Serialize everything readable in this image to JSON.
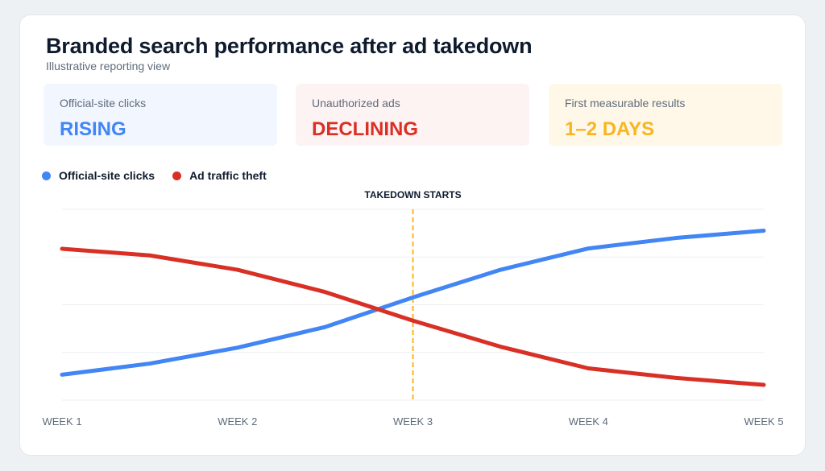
{
  "header": {
    "title": "Branded search performance after ad takedown",
    "subtitle": "Illustrative reporting view"
  },
  "kpis": [
    {
      "label": "Official-site clicks",
      "value": "RISING",
      "bg": "#f2f6fe",
      "color": "#4285f4"
    },
    {
      "label": "Unauthorized ads",
      "value": "DECLINING",
      "bg": "#fef3f3",
      "color": "#d93025"
    },
    {
      "label": "First measurable results",
      "value": "1–2 DAYS",
      "bg": "#fff8e9",
      "color": "#f9b51f"
    }
  ],
  "colors": {
    "blue": "#4285f4",
    "red": "#d93025",
    "marker": "#f9b51f",
    "grid": "#eceff3",
    "tick": "#5f6b7a"
  },
  "chart_data": {
    "type": "line",
    "x": [
      "WEEK 1",
      "",
      "WEEK 2",
      "",
      "WEEK 3",
      "",
      "WEEK 4",
      "",
      "WEEK 5"
    ],
    "tick_labels": [
      "WEEK 1",
      "WEEK 2",
      "WEEK 3",
      "WEEK 4",
      "WEEK 5"
    ],
    "series": [
      {
        "name": "Official-site clicks",
        "color": "#4285f4",
        "values": [
          0.8,
          1.15,
          1.65,
          2.3,
          3.23,
          4.1,
          4.77,
          5.1,
          5.33
        ]
      },
      {
        "name": "Ad traffic theft",
        "color": "#d93025",
        "values": [
          4.76,
          4.55,
          4.1,
          3.4,
          2.5,
          1.68,
          1.0,
          0.7,
          0.48
        ]
      }
    ],
    "ylim": [
      0,
      6
    ],
    "y_axis_labels": false,
    "grid": true,
    "legend": "top-left",
    "annotations": [
      {
        "text": "TAKEDOWN STARTS",
        "x": 3,
        "style": "dashed vertical line"
      }
    ]
  }
}
